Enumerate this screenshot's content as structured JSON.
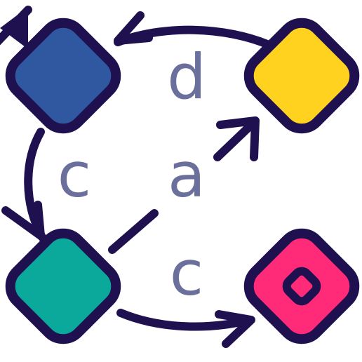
{
  "diagram": {
    "type": "state-machine",
    "colors": {
      "stroke": "#1f1150",
      "label": "#6a6f9b",
      "background": "#ffffff"
    },
    "states": [
      {
        "id": "s1",
        "name": "blue-state",
        "fill": "#2f58a0",
        "initial": true,
        "accepting": false
      },
      {
        "id": "s2",
        "name": "yellow-state",
        "fill": "#ffd21f",
        "initial": false,
        "accepting": false
      },
      {
        "id": "s3",
        "name": "teal-state",
        "fill": "#0ba89c",
        "initial": false,
        "accepting": false
      },
      {
        "id": "s4",
        "name": "pink-state",
        "fill": "#ff2a78",
        "initial": false,
        "accepting": true
      }
    ],
    "transitions": [
      {
        "from": "s2",
        "to": "s1",
        "label": "d"
      },
      {
        "from": "s1",
        "to": "s3",
        "label": "c"
      },
      {
        "from": "s3",
        "to": "s2",
        "label": "a"
      },
      {
        "from": "s3",
        "to": "s4",
        "label": "c"
      }
    ]
  }
}
